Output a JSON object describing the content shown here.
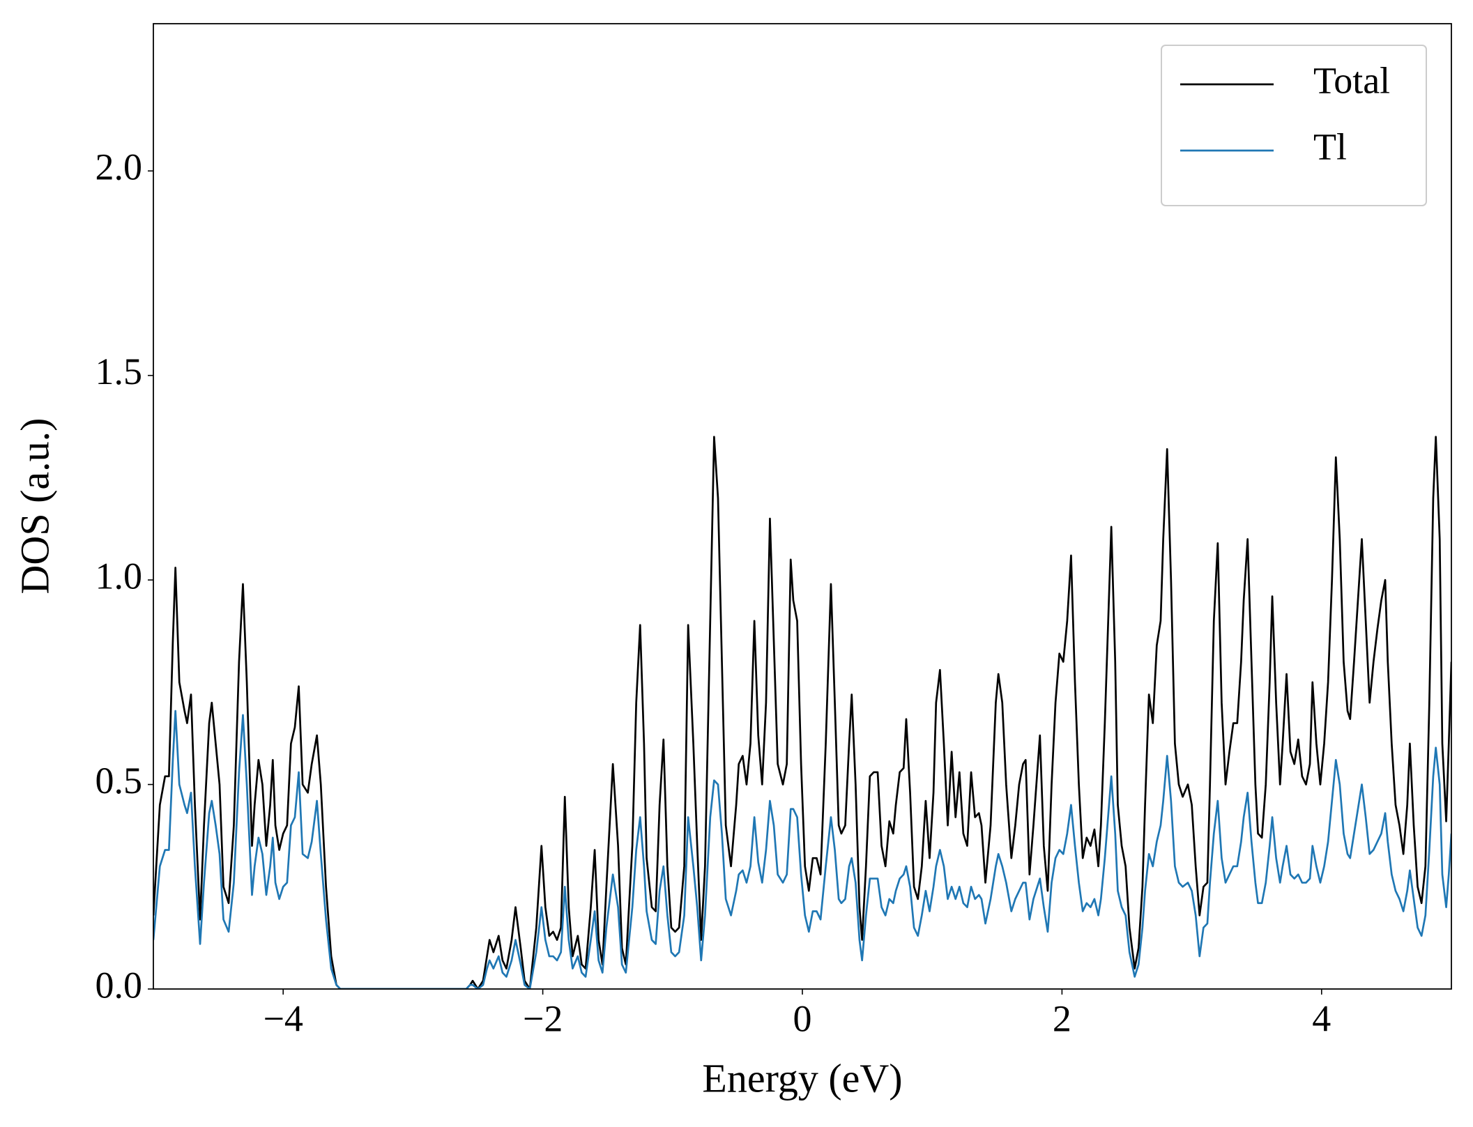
{
  "chart_data": {
    "type": "line",
    "xlabel": "Energy (eV)",
    "ylabel": "DOS (a.u.)",
    "xlim": [
      -5,
      5
    ],
    "ylim": [
      0,
      2.36
    ],
    "xticks": [
      {
        "value": -4,
        "label": "−4"
      },
      {
        "value": -2,
        "label": "−2"
      },
      0,
      2,
      4
    ],
    "yticks": [
      {
        "value": 0,
        "label": "0.0"
      },
      0.5,
      {
        "value": 1,
        "label": "1.0"
      },
      1.5,
      {
        "value": 2,
        "label": "2.0"
      }
    ],
    "grid": false,
    "legend": "upper right",
    "x": [
      -5.0,
      -4.95,
      -4.91,
      -4.88,
      -4.85,
      -4.83,
      -4.8,
      -4.76,
      -4.74,
      -4.71,
      -4.68,
      -4.64,
      -4.61,
      -4.57,
      -4.55,
      -4.52,
      -4.49,
      -4.46,
      -4.42,
      -4.38,
      -4.34,
      -4.31,
      -4.28,
      -4.24,
      -4.22,
      -4.19,
      -4.16,
      -4.13,
      -4.1,
      -4.08,
      -4.06,
      -4.03,
      -4.0,
      -3.97,
      -3.94,
      -3.91,
      -3.88,
      -3.85,
      -3.81,
      -3.78,
      -3.74,
      -3.71,
      -3.67,
      -3.63,
      -3.59,
      -3.56,
      -2.59,
      -2.56,
      -2.54,
      -2.5,
      -2.46,
      -2.43,
      -2.41,
      -2.38,
      -2.34,
      -2.31,
      -2.28,
      -2.24,
      -2.21,
      -2.17,
      -2.14,
      -2.1,
      -2.05,
      -2.01,
      -1.98,
      -1.95,
      -1.92,
      -1.89,
      -1.86,
      -1.83,
      -1.8,
      -1.77,
      -1.73,
      -1.7,
      -1.67,
      -1.63,
      -1.6,
      -1.57,
      -1.54,
      -1.51,
      -1.46,
      -1.42,
      -1.39,
      -1.36,
      -1.31,
      -1.28,
      -1.25,
      -1.22,
      -1.2,
      -1.16,
      -1.13,
      -1.1,
      -1.07,
      -1.04,
      -1.01,
      -0.98,
      -0.95,
      -0.91,
      -0.88,
      -0.84,
      -0.81,
      -0.78,
      -0.75,
      -0.71,
      -0.68,
      -0.65,
      -0.62,
      -0.59,
      -0.55,
      -0.51,
      -0.49,
      -0.46,
      -0.43,
      -0.4,
      -0.37,
      -0.34,
      -0.31,
      -0.28,
      -0.25,
      -0.22,
      -0.19,
      -0.15,
      -0.12,
      -0.09,
      -0.07,
      -0.04,
      -0.01,
      0.02,
      0.05,
      0.08,
      0.11,
      0.14,
      0.18,
      0.22,
      0.25,
      0.28,
      0.3,
      0.33,
      0.36,
      0.38,
      0.41,
      0.44,
      0.46,
      0.49,
      0.52,
      0.55,
      0.58,
      0.61,
      0.64,
      0.67,
      0.7,
      0.72,
      0.75,
      0.78,
      0.8,
      0.83,
      0.86,
      0.89,
      0.92,
      0.95,
      0.98,
      1.01,
      1.03,
      1.06,
      1.09,
      1.12,
      1.15,
      1.18,
      1.21,
      1.24,
      1.27,
      1.3,
      1.33,
      1.36,
      1.38,
      1.41,
      1.45,
      1.49,
      1.51,
      1.54,
      1.57,
      1.61,
      1.64,
      1.67,
      1.7,
      1.72,
      1.75,
      1.78,
      1.83,
      1.86,
      1.89,
      1.92,
      1.95,
      1.98,
      2.01,
      2.04,
      2.07,
      2.1,
      2.13,
      2.16,
      2.19,
      2.22,
      2.25,
      2.28,
      2.3,
      2.33,
      2.38,
      2.41,
      2.43,
      2.46,
      2.49,
      2.52,
      2.56,
      2.59,
      2.62,
      2.64,
      2.67,
      2.7,
      2.73,
      2.76,
      2.78,
      2.81,
      2.84,
      2.87,
      2.9,
      2.93,
      2.97,
      3.0,
      3.03,
      3.06,
      3.09,
      3.12,
      3.14,
      3.17,
      3.2,
      3.23,
      3.26,
      3.29,
      3.32,
      3.35,
      3.38,
      3.4,
      3.43,
      3.46,
      3.49,
      3.51,
      3.54,
      3.57,
      3.6,
      3.62,
      3.65,
      3.68,
      3.7,
      3.73,
      3.76,
      3.79,
      3.82,
      3.85,
      3.88,
      3.91,
      3.93,
      3.96,
      3.99,
      4.02,
      4.05,
      4.08,
      4.11,
      4.14,
      4.17,
      4.2,
      4.22,
      4.25,
      4.28,
      4.31,
      4.34,
      4.37,
      4.4,
      4.43,
      4.46,
      4.49,
      4.51,
      4.54,
      4.57,
      4.6,
      4.63,
      4.66,
      4.68,
      4.71,
      4.74,
      4.77,
      4.8,
      4.83,
      4.86,
      4.88,
      4.91,
      4.93,
      4.96,
      4.98,
      5.0
    ],
    "series": [
      {
        "name": "Total",
        "color": "#000000",
        "values": [
          0.18,
          0.45,
          0.52,
          0.52,
          0.85,
          1.03,
          0.75,
          0.68,
          0.65,
          0.72,
          0.45,
          0.17,
          0.4,
          0.65,
          0.7,
          0.6,
          0.5,
          0.25,
          0.21,
          0.4,
          0.8,
          0.99,
          0.75,
          0.35,
          0.45,
          0.56,
          0.5,
          0.35,
          0.45,
          0.56,
          0.4,
          0.34,
          0.38,
          0.4,
          0.6,
          0.64,
          0.74,
          0.5,
          0.48,
          0.55,
          0.62,
          0.5,
          0.25,
          0.08,
          0.01,
          0,
          0,
          0.01,
          0.02,
          0,
          0.02,
          0.08,
          0.12,
          0.09,
          0.13,
          0.07,
          0.05,
          0.12,
          0.2,
          0.1,
          0.02,
          0,
          0.15,
          0.35,
          0.2,
          0.13,
          0.14,
          0.12,
          0.15,
          0.47,
          0.2,
          0.08,
          0.13,
          0.06,
          0.05,
          0.2,
          0.34,
          0.12,
          0.06,
          0.25,
          0.55,
          0.35,
          0.1,
          0.06,
          0.35,
          0.7,
          0.89,
          0.6,
          0.32,
          0.2,
          0.19,
          0.45,
          0.61,
          0.3,
          0.15,
          0.14,
          0.15,
          0.3,
          0.89,
          0.6,
          0.35,
          0.12,
          0.3,
          0.9,
          1.35,
          1.2,
          0.8,
          0.4,
          0.3,
          0.45,
          0.55,
          0.57,
          0.5,
          0.6,
          0.9,
          0.62,
          0.5,
          0.7,
          1.15,
          0.85,
          0.55,
          0.5,
          0.55,
          1.05,
          0.95,
          0.9,
          0.55,
          0.3,
          0.24,
          0.32,
          0.32,
          0.28,
          0.6,
          0.99,
          0.7,
          0.4,
          0.38,
          0.4,
          0.6,
          0.72,
          0.5,
          0.2,
          0.12,
          0.3,
          0.52,
          0.53,
          0.53,
          0.35,
          0.3,
          0.41,
          0.38,
          0.45,
          0.53,
          0.54,
          0.66,
          0.48,
          0.25,
          0.22,
          0.3,
          0.46,
          0.32,
          0.48,
          0.7,
          0.78,
          0.6,
          0.4,
          0.58,
          0.42,
          0.53,
          0.38,
          0.35,
          0.53,
          0.42,
          0.43,
          0.4,
          0.26,
          0.4,
          0.7,
          0.77,
          0.7,
          0.5,
          0.32,
          0.4,
          0.5,
          0.55,
          0.56,
          0.28,
          0.4,
          0.62,
          0.35,
          0.24,
          0.5,
          0.7,
          0.82,
          0.8,
          0.9,
          1.06,
          0.75,
          0.5,
          0.32,
          0.37,
          0.35,
          0.39,
          0.3,
          0.4,
          0.65,
          1.13,
          0.8,
          0.45,
          0.35,
          0.3,
          0.15,
          0.05,
          0.1,
          0.25,
          0.45,
          0.72,
          0.65,
          0.84,
          0.9,
          1.1,
          1.32,
          1.0,
          0.6,
          0.5,
          0.47,
          0.5,
          0.45,
          0.3,
          0.18,
          0.25,
          0.26,
          0.5,
          0.9,
          1.09,
          0.7,
          0.5,
          0.58,
          0.65,
          0.65,
          0.8,
          0.95,
          1.1,
          0.8,
          0.5,
          0.38,
          0.37,
          0.5,
          0.75,
          0.96,
          0.7,
          0.5,
          0.6,
          0.77,
          0.58,
          0.55,
          0.61,
          0.52,
          0.5,
          0.55,
          0.75,
          0.6,
          0.5,
          0.6,
          0.75,
          1.0,
          1.3,
          1.1,
          0.8,
          0.68,
          0.66,
          0.8,
          0.95,
          1.1,
          0.9,
          0.7,
          0.8,
          0.88,
          0.95,
          1.0,
          0.8,
          0.6,
          0.45,
          0.4,
          0.33,
          0.45,
          0.6,
          0.4,
          0.25,
          0.21,
          0.3,
          0.7,
          1.2,
          1.35,
          1.1,
          0.6,
          0.41,
          0.6,
          0.8
        ]
      },
      {
        "name": "Tl",
        "color": "#1f77b4",
        "values": [
          0.12,
          0.3,
          0.34,
          0.34,
          0.56,
          0.68,
          0.5,
          0.45,
          0.43,
          0.48,
          0.3,
          0.11,
          0.26,
          0.43,
          0.46,
          0.4,
          0.33,
          0.17,
          0.14,
          0.26,
          0.53,
          0.67,
          0.5,
          0.23,
          0.3,
          0.37,
          0.33,
          0.23,
          0.3,
          0.37,
          0.26,
          0.22,
          0.25,
          0.26,
          0.4,
          0.42,
          0.53,
          0.33,
          0.32,
          0.36,
          0.46,
          0.33,
          0.17,
          0.05,
          0.01,
          0,
          0,
          0.01,
          0.01,
          0,
          0.01,
          0.05,
          0.07,
          0.05,
          0.08,
          0.04,
          0.03,
          0.07,
          0.12,
          0.06,
          0.01,
          0,
          0.09,
          0.2,
          0.12,
          0.08,
          0.08,
          0.07,
          0.09,
          0.25,
          0.12,
          0.05,
          0.08,
          0.04,
          0.03,
          0.12,
          0.19,
          0.07,
          0.04,
          0.15,
          0.28,
          0.2,
          0.06,
          0.04,
          0.2,
          0.34,
          0.42,
          0.3,
          0.19,
          0.12,
          0.11,
          0.24,
          0.3,
          0.18,
          0.09,
          0.08,
          0.09,
          0.18,
          0.42,
          0.3,
          0.2,
          0.07,
          0.18,
          0.42,
          0.51,
          0.5,
          0.38,
          0.22,
          0.18,
          0.24,
          0.28,
          0.29,
          0.26,
          0.3,
          0.42,
          0.31,
          0.26,
          0.34,
          0.46,
          0.4,
          0.28,
          0.26,
          0.28,
          0.44,
          0.44,
          0.42,
          0.28,
          0.18,
          0.14,
          0.19,
          0.19,
          0.17,
          0.3,
          0.42,
          0.34,
          0.22,
          0.21,
          0.22,
          0.3,
          0.32,
          0.26,
          0.12,
          0.07,
          0.18,
          0.27,
          0.27,
          0.27,
          0.2,
          0.18,
          0.22,
          0.21,
          0.24,
          0.27,
          0.28,
          0.3,
          0.25,
          0.15,
          0.13,
          0.18,
          0.24,
          0.19,
          0.25,
          0.3,
          0.34,
          0.3,
          0.22,
          0.25,
          0.22,
          0.25,
          0.21,
          0.2,
          0.25,
          0.22,
          0.23,
          0.22,
          0.16,
          0.22,
          0.3,
          0.33,
          0.3,
          0.26,
          0.19,
          0.22,
          0.24,
          0.26,
          0.26,
          0.17,
          0.22,
          0.27,
          0.2,
          0.14,
          0.26,
          0.32,
          0.34,
          0.33,
          0.38,
          0.45,
          0.35,
          0.26,
          0.19,
          0.21,
          0.2,
          0.22,
          0.18,
          0.22,
          0.32,
          0.52,
          0.38,
          0.24,
          0.2,
          0.18,
          0.09,
          0.03,
          0.06,
          0.15,
          0.24,
          0.33,
          0.3,
          0.36,
          0.4,
          0.46,
          0.57,
          0.46,
          0.3,
          0.26,
          0.25,
          0.26,
          0.24,
          0.18,
          0.08,
          0.15,
          0.16,
          0.26,
          0.38,
          0.46,
          0.32,
          0.26,
          0.28,
          0.3,
          0.3,
          0.36,
          0.42,
          0.48,
          0.36,
          0.26,
          0.21,
          0.21,
          0.26,
          0.35,
          0.42,
          0.32,
          0.26,
          0.3,
          0.35,
          0.28,
          0.27,
          0.28,
          0.26,
          0.26,
          0.27,
          0.35,
          0.3,
          0.26,
          0.3,
          0.36,
          0.46,
          0.56,
          0.5,
          0.38,
          0.33,
          0.32,
          0.38,
          0.44,
          0.5,
          0.42,
          0.33,
          0.34,
          0.36,
          0.38,
          0.43,
          0.36,
          0.28,
          0.24,
          0.22,
          0.19,
          0.24,
          0.29,
          0.22,
          0.15,
          0.13,
          0.18,
          0.34,
          0.52,
          0.59,
          0.5,
          0.28,
          0.2,
          0.28,
          0.38
        ]
      }
    ]
  }
}
